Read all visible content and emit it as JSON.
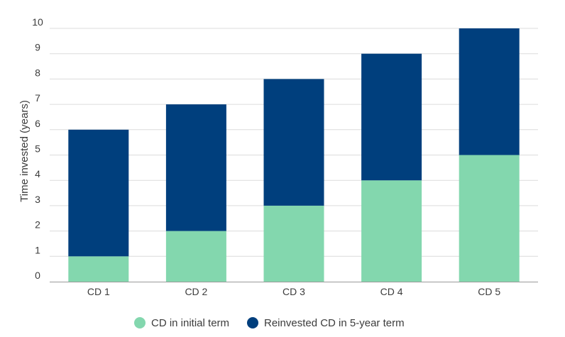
{
  "chart_data": {
    "type": "bar",
    "stacked": true,
    "title": "",
    "xlabel": "",
    "ylabel": "Time invested (years)",
    "ylim": [
      0,
      10
    ],
    "yticks": [
      "0",
      "1",
      "2",
      "3",
      "4",
      "5",
      "6",
      "7",
      "8",
      "9",
      "10"
    ],
    "grid": true,
    "legend_position": "bottom-center",
    "categories": [
      "CD 1",
      "CD 2",
      "CD 3",
      "CD 4",
      "CD 5"
    ],
    "series": [
      {
        "name": "CD in initial term",
        "values": [
          1,
          2,
          3,
          4,
          5
        ],
        "color": "#83d7ae"
      },
      {
        "name": "Reinvested CD in 5-year term",
        "values": [
          5,
          5,
          5,
          5,
          5
        ],
        "color": "#003f7d"
      }
    ]
  }
}
